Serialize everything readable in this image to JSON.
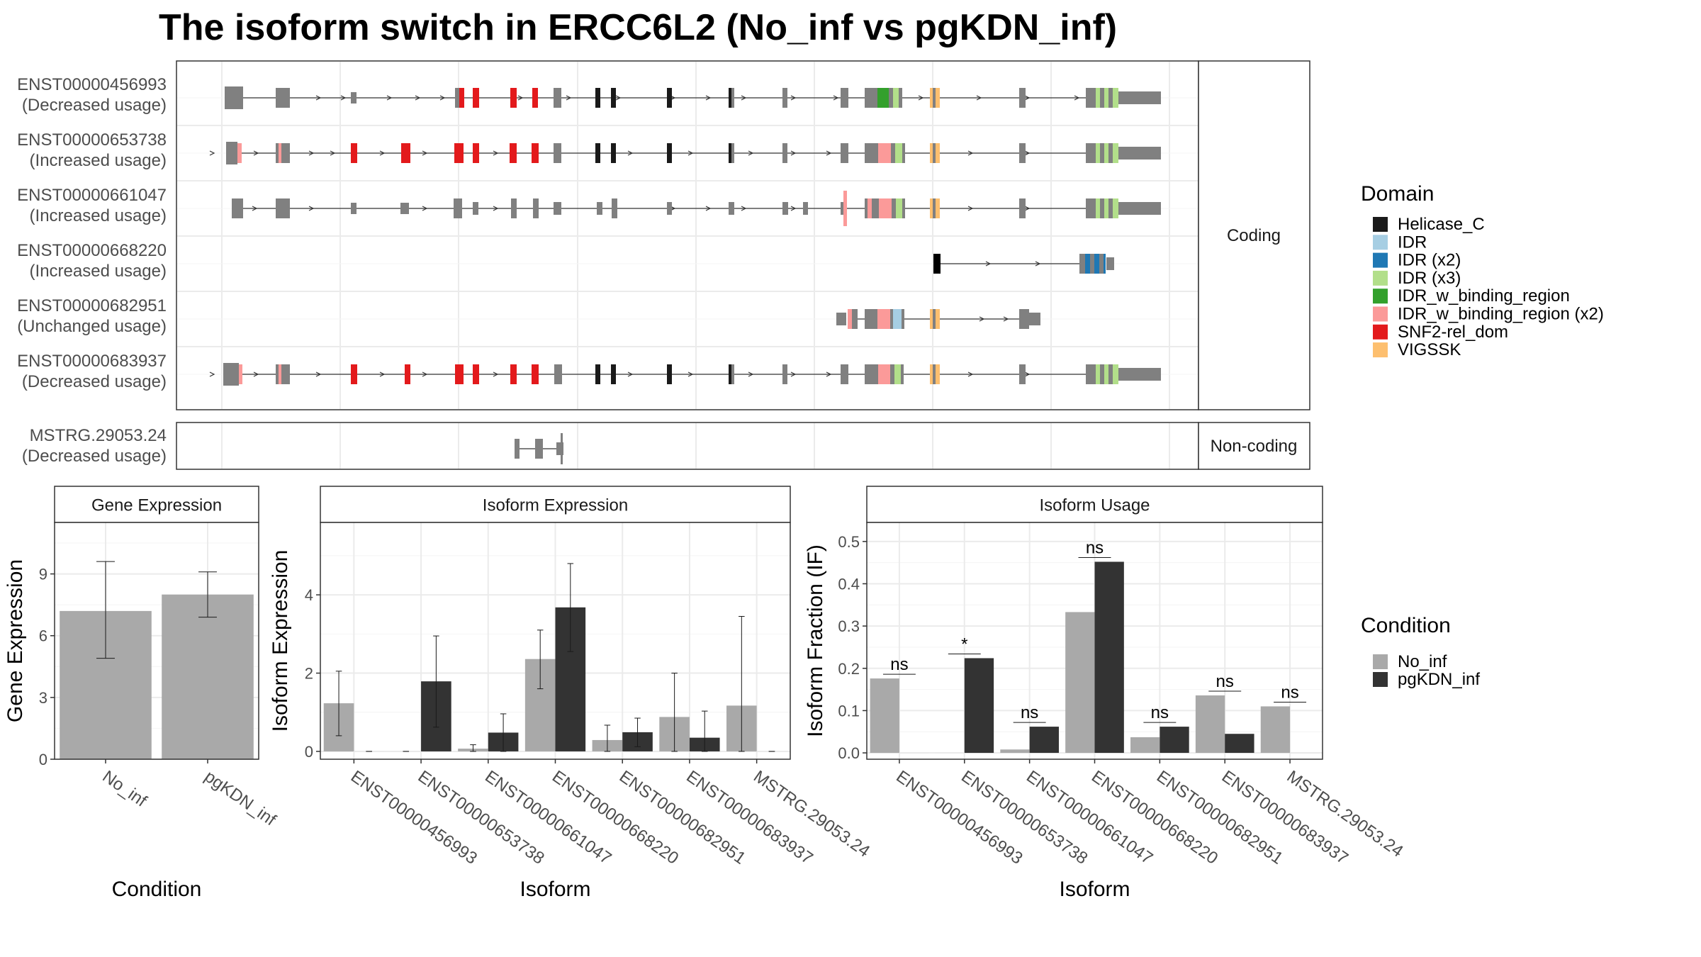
{
  "colors": {
    "exon": "#808080",
    "no_inf": "#A9A9A9",
    "pgkdn_inf": "#333333",
    "panel_border": "#333333",
    "grid": "#EBEBEB",
    "strip_bg": "#FFFFFF"
  },
  "chart_data": [
    {
      "type": "gene-structure",
      "title": "The isoform switch in ERCC6L2 (No_inf vs pgKDN_inf)",
      "legend": {
        "title": "Domain",
        "items": [
          {
            "label": "Helicase_C",
            "color": "#1A1A1A"
          },
          {
            "label": "IDR",
            "color": "#A6CEE3"
          },
          {
            "label": "IDR (x2)",
            "color": "#1F78B4"
          },
          {
            "label": "IDR (x3)",
            "color": "#B2DF8A"
          },
          {
            "label": "IDR_w_binding_region",
            "color": "#33A02C"
          },
          {
            "label": "IDR_w_binding_region (x2)",
            "color": "#FB9A99"
          },
          {
            "label": "SNF2-rel_dom",
            "color": "#E31A1C"
          },
          {
            "label": "VIGSSK",
            "color": "#FDBF6F"
          }
        ]
      },
      "facets": [
        {
          "label": "Coding",
          "tracks": [
            {
              "id": "ENST00000456993",
              "status": "(Decreased usage)"
            },
            {
              "id": "ENST00000653738",
              "status": "(Increased usage)"
            },
            {
              "id": "ENST00000661047",
              "status": "(Increased usage)"
            },
            {
              "id": "ENST00000668220",
              "status": "(Increased usage)"
            },
            {
              "id": "ENST00000682951",
              "status": "(Unchanged usage)"
            },
            {
              "id": "ENST00000683937",
              "status": "(Decreased usage)"
            }
          ]
        },
        {
          "label": "Non-coding",
          "tracks": [
            {
              "id": "MSTRG.29053.24",
              "status": "(Decreased usage)"
            }
          ]
        }
      ]
    },
    {
      "type": "bar",
      "panel": "Gene Expression",
      "xlabel": "Condition",
      "ylabel": "Gene Expression",
      "categories": [
        "No_inf",
        "pgKDN_inf"
      ],
      "values": [
        7.2,
        8.0
      ],
      "err_low": [
        4.9,
        6.9
      ],
      "err_high": [
        9.6,
        9.1
      ],
      "ylim": [
        0,
        11.5
      ],
      "yticks": [
        0,
        3,
        6,
        9
      ]
    },
    {
      "type": "bar",
      "panel": "Isoform Expression",
      "xlabel": "Isoform",
      "ylabel": "Isoform Expression",
      "categories": [
        "ENST00000456993",
        "ENST00000653738",
        "ENST00000661047",
        "ENST00000668220",
        "ENST00000682951",
        "ENST00000683937",
        "MSTRG.29053.24"
      ],
      "series": [
        {
          "name": "No_inf",
          "values": [
            1.23,
            0.0,
            0.07,
            2.36,
            0.29,
            0.88,
            1.17
          ],
          "err_low": [
            0.4,
            0.0,
            0.0,
            1.6,
            0.0,
            0.0,
            0.0
          ],
          "err_high": [
            2.05,
            0.0,
            0.17,
            3.1,
            0.67,
            2.0,
            3.45
          ]
        },
        {
          "name": "pgKDN_inf",
          "values": [
            0.0,
            1.79,
            0.48,
            3.68,
            0.49,
            0.35,
            0.0
          ],
          "err_low": [
            0.0,
            0.62,
            0.0,
            2.55,
            0.12,
            0.0,
            0.0
          ],
          "err_high": [
            0.0,
            2.95,
            0.96,
            4.8,
            0.85,
            1.03,
            0.0
          ]
        }
      ],
      "ylim": [
        -0.2,
        5.85
      ],
      "yticks": [
        0,
        2,
        4
      ]
    },
    {
      "type": "bar",
      "panel": "Isoform Usage",
      "xlabel": "Isoform",
      "ylabel": "Isoform Fraction (IF)",
      "categories": [
        "ENST00000456993",
        "ENST00000653738",
        "ENST00000661047",
        "ENST00000668220",
        "ENST00000682951",
        "ENST00000683937",
        "MSTRG.29053.24"
      ],
      "series": [
        {
          "name": "No_inf",
          "values": [
            0.176,
            0.0,
            0.008,
            0.333,
            0.037,
            0.136,
            0.11
          ]
        },
        {
          "name": "pgKDN_inf",
          "values": [
            0.0,
            0.224,
            0.062,
            0.452,
            0.062,
            0.045,
            0.0
          ]
        }
      ],
      "significance": [
        "ns",
        "*",
        "ns",
        "ns",
        "ns",
        "ns",
        "ns"
      ],
      "ylim": [
        -0.015,
        0.545
      ],
      "yticks": [
        0.0,
        0.1,
        0.2,
        0.3,
        0.4,
        0.5
      ],
      "ytick_labels": [
        "0.0",
        "0.1",
        "0.2",
        "0.3",
        "0.4",
        "0.5"
      ]
    }
  ],
  "condition_legend": {
    "title": "Condition",
    "items": [
      {
        "label": "No_inf",
        "color": "#A9A9A9"
      },
      {
        "label": "pgKDN_inf",
        "color": "#333333"
      }
    ]
  }
}
